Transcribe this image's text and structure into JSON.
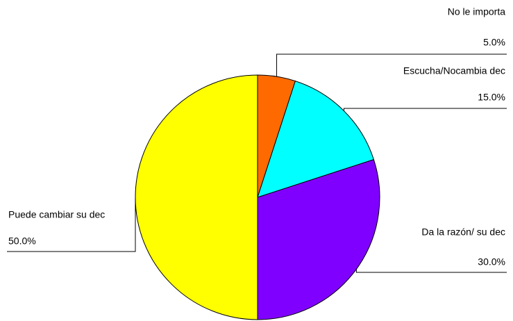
{
  "chart_data": {
    "type": "pie",
    "categories": [
      "No le importa",
      "Escucha/Nocambia dec",
      "Da la razón/ su dec",
      "Puede cambiar su dec"
    ],
    "values": [
      5.0,
      15.0,
      30.0,
      50.0
    ],
    "value_labels": [
      "5.0%",
      "15.0%",
      "30.0%",
      "50.0%"
    ],
    "colors": [
      "#ff6a00",
      "#00ffff",
      "#8000ff",
      "#ffff00"
    ]
  }
}
